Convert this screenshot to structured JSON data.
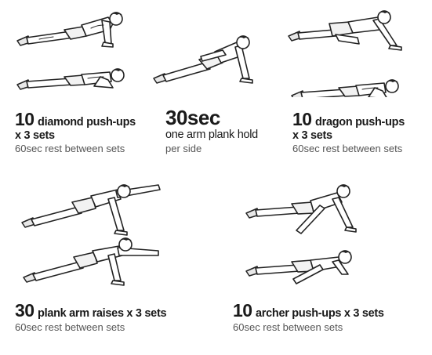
{
  "exercises": [
    {
      "count": "10",
      "name": "diamond push-ups",
      "line2": "x 3 sets",
      "rest": "60sec rest between sets"
    },
    {
      "count": "30sec",
      "name": "",
      "line2": "one arm plank hold",
      "rest": "per side"
    },
    {
      "count": "10",
      "name": "dragon push-ups",
      "line2": "x 3 sets",
      "rest": "60sec rest between sets"
    },
    {
      "count": "30",
      "name": "plank arm raises x 3 sets",
      "line2": "",
      "rest": "60sec rest between sets"
    },
    {
      "count": "10",
      "name": "archer push-ups x 3 sets",
      "line2": "",
      "rest": "60sec rest between sets"
    }
  ]
}
